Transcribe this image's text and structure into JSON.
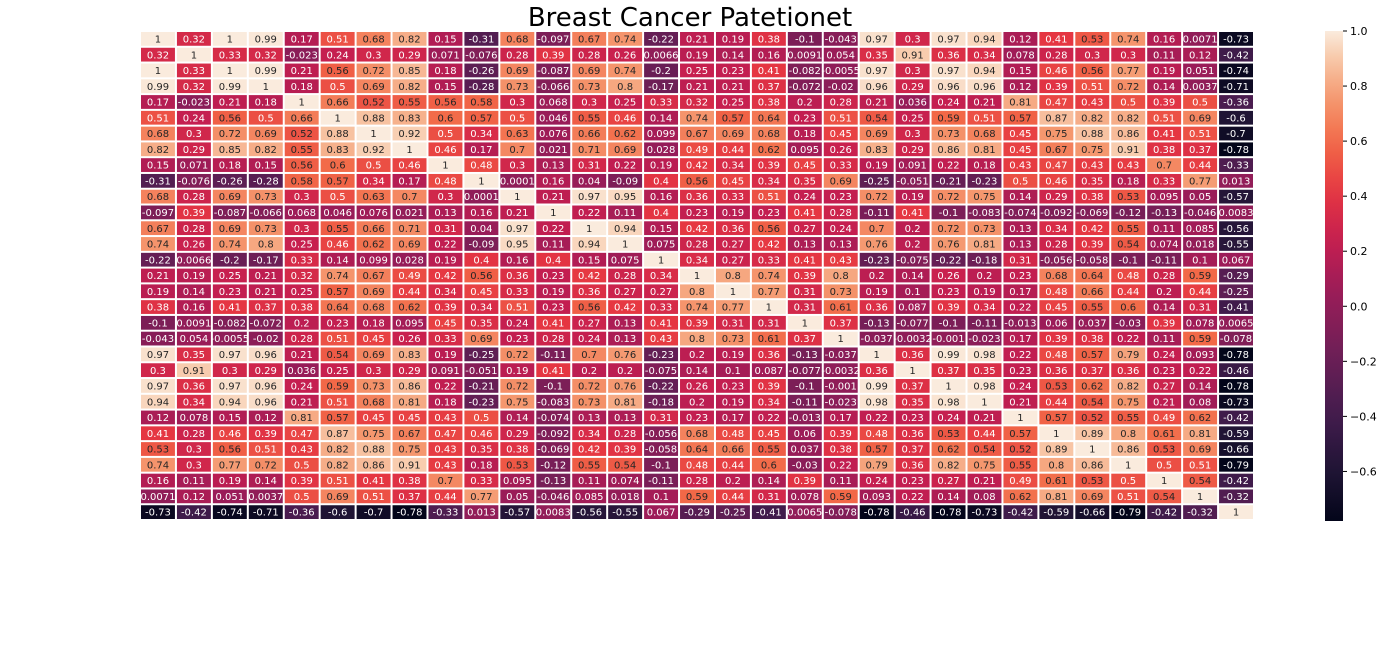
{
  "chart_data": {
    "type": "heatmap",
    "title": "Breast Cancer Patetionet",
    "colormap": "rocket",
    "vmin": -0.78,
    "vmax": 1.0,
    "colorbar_ticks": [
      "1.0",
      "0.8",
      "0.6",
      "0.4",
      "0.2",
      "0.0",
      "−0.2",
      "−0.4",
      "−0.6"
    ],
    "colorbar_tick_values": [
      1.0,
      0.8,
      0.6,
      0.4,
      0.2,
      0.0,
      -0.2,
      -0.4,
      -0.6
    ],
    "x_tick_labels": [],
    "y_tick_labels": [],
    "grid": "white lines between cells",
    "labels": [
      [
        "1",
        "0.32",
        "1",
        "0.99",
        "0.17",
        "0.51",
        "0.68",
        "0.82",
        "0.15",
        "-0.31",
        "0.68",
        "-0.097",
        "0.67",
        "0.74",
        "-0.22",
        "0.21",
        "0.19",
        "0.38",
        "-0.1",
        "-0.043",
        "0.97",
        "0.3",
        "0.97",
        "0.94",
        "0.12",
        "0.41",
        "0.53",
        "0.74",
        "0.16",
        "0.0071",
        "-0.73"
      ],
      [
        "0.32",
        "1",
        "0.33",
        "0.32",
        "-0.023",
        "0.24",
        "0.3",
        "0.29",
        "0.071",
        "-0.076",
        "0.28",
        "0.39",
        "0.28",
        "0.26",
        "0.0066",
        "0.19",
        "0.14",
        "0.16",
        "0.0091",
        "0.054",
        "0.35",
        "0.91",
        "0.36",
        "0.34",
        "0.078",
        "0.28",
        "0.3",
        "0.3",
        "0.11",
        "0.12",
        "-0.42"
      ],
      [
        "1",
        "0.33",
        "1",
        "0.99",
        "0.21",
        "0.56",
        "0.72",
        "0.85",
        "0.18",
        "-0.26",
        "0.69",
        "-0.087",
        "0.69",
        "0.74",
        "-0.2",
        "0.25",
        "0.23",
        "0.41",
        "-0.082",
        "-0.0055",
        "0.97",
        "0.3",
        "0.97",
        "0.94",
        "0.15",
        "0.46",
        "0.56",
        "0.77",
        "0.19",
        "0.051",
        "-0.74"
      ],
      [
        "0.99",
        "0.32",
        "0.99",
        "1",
        "0.18",
        "0.5",
        "0.69",
        "0.82",
        "0.15",
        "-0.28",
        "0.73",
        "-0.066",
        "0.73",
        "0.8",
        "-0.17",
        "0.21",
        "0.21",
        "0.37",
        "-0.072",
        "-0.02",
        "0.96",
        "0.29",
        "0.96",
        "0.96",
        "0.12",
        "0.39",
        "0.51",
        "0.72",
        "0.14",
        "0.0037",
        "-0.71"
      ],
      [
        "0.17",
        "-0.023",
        "0.21",
        "0.18",
        "1",
        "0.66",
        "0.52",
        "0.55",
        "0.56",
        "0.58",
        "0.3",
        "0.068",
        "0.3",
        "0.25",
        "0.33",
        "0.32",
        "0.25",
        "0.38",
        "0.2",
        "0.28",
        "0.21",
        "0.036",
        "0.24",
        "0.21",
        "0.81",
        "0.47",
        "0.43",
        "0.5",
        "0.39",
        "0.5",
        "-0.36"
      ],
      [
        "0.51",
        "0.24",
        "0.56",
        "0.5",
        "0.66",
        "1",
        "0.88",
        "0.83",
        "0.6",
        "0.57",
        "0.5",
        "0.046",
        "0.55",
        "0.46",
        "0.14",
        "0.74",
        "0.57",
        "0.64",
        "0.23",
        "0.51",
        "0.54",
        "0.25",
        "0.59",
        "0.51",
        "0.57",
        "0.87",
        "0.82",
        "0.82",
        "0.51",
        "0.69",
        "-0.6"
      ],
      [
        "0.68",
        "0.3",
        "0.72",
        "0.69",
        "0.52",
        "0.88",
        "1",
        "0.92",
        "0.5",
        "0.34",
        "0.63",
        "0.076",
        "0.66",
        "0.62",
        "0.099",
        "0.67",
        "0.69",
        "0.68",
        "0.18",
        "0.45",
        "0.69",
        "0.3",
        "0.73",
        "0.68",
        "0.45",
        "0.75",
        "0.88",
        "0.86",
        "0.41",
        "0.51",
        "-0.7"
      ],
      [
        "0.82",
        "0.29",
        "0.85",
        "0.82",
        "0.55",
        "0.83",
        "0.92",
        "1",
        "0.46",
        "0.17",
        "0.7",
        "0.021",
        "0.71",
        "0.69",
        "0.028",
        "0.49",
        "0.44",
        "0.62",
        "0.095",
        "0.26",
        "0.83",
        "0.29",
        "0.86",
        "0.81",
        "0.45",
        "0.67",
        "0.75",
        "0.91",
        "0.38",
        "0.37",
        "-0.78"
      ],
      [
        "0.15",
        "0.071",
        "0.18",
        "0.15",
        "0.56",
        "0.6",
        "0.5",
        "0.46",
        "1",
        "0.48",
        "0.3",
        "0.13",
        "0.31",
        "0.22",
        "0.19",
        "0.42",
        "0.34",
        "0.39",
        "0.45",
        "0.33",
        "0.19",
        "0.091",
        "0.22",
        "0.18",
        "0.43",
        "0.47",
        "0.43",
        "0.43",
        "0.7",
        "0.44",
        "-0.33"
      ],
      [
        "-0.31",
        "-0.076",
        "-0.26",
        "-0.28",
        "0.58",
        "0.57",
        "0.34",
        "0.17",
        "0.48",
        "1",
        "0.0001",
        "0.16",
        "0.04",
        "-0.09",
        "0.4",
        "0.56",
        "0.45",
        "0.34",
        "0.35",
        "0.69",
        "-0.25",
        "-0.051",
        "-0.21",
        "-0.23",
        "0.5",
        "0.46",
        "0.35",
        "0.18",
        "0.33",
        "0.77",
        "0.013"
      ],
      [
        "0.68",
        "0.28",
        "0.69",
        "0.73",
        "0.3",
        "0.5",
        "0.63",
        "0.7",
        "0.3",
        "0.0001",
        "1",
        "0.21",
        "0.97",
        "0.95",
        "0.16",
        "0.36",
        "0.33",
        "0.51",
        "0.24",
        "0.23",
        "0.72",
        "0.19",
        "0.72",
        "0.75",
        "0.14",
        "0.29",
        "0.38",
        "0.53",
        "0.095",
        "0.05",
        "-0.57"
      ],
      [
        "-0.097",
        "0.39",
        "-0.087",
        "-0.066",
        "0.068",
        "0.046",
        "0.076",
        "0.021",
        "0.13",
        "0.16",
        "0.21",
        "1",
        "0.22",
        "0.11",
        "0.4",
        "0.23",
        "0.19",
        "0.23",
        "0.41",
        "0.28",
        "-0.11",
        "0.41",
        "-0.1",
        "-0.083",
        "-0.074",
        "-0.092",
        "-0.069",
        "-0.12",
        "-0.13",
        "-0.046",
        "0.0083"
      ],
      [
        "0.67",
        "0.28",
        "0.69",
        "0.73",
        "0.3",
        "0.55",
        "0.66",
        "0.71",
        "0.31",
        "0.04",
        "0.97",
        "0.22",
        "1",
        "0.94",
        "0.15",
        "0.42",
        "0.36",
        "0.56",
        "0.27",
        "0.24",
        "0.7",
        "0.2",
        "0.72",
        "0.73",
        "0.13",
        "0.34",
        "0.42",
        "0.55",
        "0.11",
        "0.085",
        "-0.56"
      ],
      [
        "0.74",
        "0.26",
        "0.74",
        "0.8",
        "0.25",
        "0.46",
        "0.62",
        "0.69",
        "0.22",
        "-0.09",
        "0.95",
        "0.11",
        "0.94",
        "1",
        "0.075",
        "0.28",
        "0.27",
        "0.42",
        "0.13",
        "0.13",
        "0.76",
        "0.2",
        "0.76",
        "0.81",
        "0.13",
        "0.28",
        "0.39",
        "0.54",
        "0.074",
        "0.018",
        "-0.55"
      ],
      [
        "-0.22",
        "0.0066",
        "-0.2",
        "-0.17",
        "0.33",
        "0.14",
        "0.099",
        "0.028",
        "0.19",
        "0.4",
        "0.16",
        "0.4",
        "0.15",
        "0.075",
        "1",
        "0.34",
        "0.27",
        "0.33",
        "0.41",
        "0.43",
        "-0.23",
        "-0.075",
        "-0.22",
        "-0.18",
        "0.31",
        "-0.056",
        "-0.058",
        "-0.1",
        "-0.11",
        "0.1",
        "0.067"
      ],
      [
        "0.21",
        "0.19",
        "0.25",
        "0.21",
        "0.32",
        "0.74",
        "0.67",
        "0.49",
        "0.42",
        "0.56",
        "0.36",
        "0.23",
        "0.42",
        "0.28",
        "0.34",
        "1",
        "0.8",
        "0.74",
        "0.39",
        "0.8",
        "0.2",
        "0.14",
        "0.26",
        "0.2",
        "0.23",
        "0.68",
        "0.64",
        "0.48",
        "0.28",
        "0.59",
        "-0.29"
      ],
      [
        "0.19",
        "0.14",
        "0.23",
        "0.21",
        "0.25",
        "0.57",
        "0.69",
        "0.44",
        "0.34",
        "0.45",
        "0.33",
        "0.19",
        "0.36",
        "0.27",
        "0.27",
        "0.8",
        "1",
        "0.77",
        "0.31",
        "0.73",
        "0.19",
        "0.1",
        "0.23",
        "0.19",
        "0.17",
        "0.48",
        "0.66",
        "0.44",
        "0.2",
        "0.44",
        "-0.25"
      ],
      [
        "0.38",
        "0.16",
        "0.41",
        "0.37",
        "0.38",
        "0.64",
        "0.68",
        "0.62",
        "0.39",
        "0.34",
        "0.51",
        "0.23",
        "0.56",
        "0.42",
        "0.33",
        "0.74",
        "0.77",
        "1",
        "0.31",
        "0.61",
        "0.36",
        "0.087",
        "0.39",
        "0.34",
        "0.22",
        "0.45",
        "0.55",
        "0.6",
        "0.14",
        "0.31",
        "-0.41"
      ],
      [
        "-0.1",
        "0.0091",
        "-0.082",
        "-0.072",
        "0.2",
        "0.23",
        "0.18",
        "0.095",
        "0.45",
        "0.35",
        "0.24",
        "0.41",
        "0.27",
        "0.13",
        "0.41",
        "0.39",
        "0.31",
        "0.31",
        "1",
        "0.37",
        "-0.13",
        "-0.077",
        "-0.1",
        "-0.11",
        "-0.013",
        "0.06",
        "0.037",
        "-0.03",
        "0.39",
        "0.078",
        "0.0065"
      ],
      [
        "-0.043",
        "0.054",
        "-0.0055",
        "-0.02",
        "0.28",
        "0.51",
        "0.45",
        "0.26",
        "0.33",
        "0.69",
        "0.23",
        "0.28",
        "0.24",
        "0.13",
        "0.43",
        "0.8",
        "0.73",
        "0.61",
        "0.37",
        "1",
        "-0.037",
        "-0.0032",
        "-0.001",
        "-0.023",
        "0.17",
        "0.39",
        "0.38",
        "0.22",
        "0.11",
        "0.59",
        "-0.078"
      ],
      [
        "0.97",
        "0.35",
        "0.97",
        "0.96",
        "0.21",
        "0.54",
        "0.69",
        "0.83",
        "0.19",
        "-0.25",
        "0.72",
        "-0.11",
        "0.7",
        "0.76",
        "-0.23",
        "0.2",
        "0.19",
        "0.36",
        "-0.13",
        "-0.037",
        "1",
        "0.36",
        "0.99",
        "0.98",
        "0.22",
        "0.48",
        "0.57",
        "0.79",
        "0.24",
        "0.093",
        "-0.78"
      ],
      [
        "0.3",
        "0.91",
        "0.3",
        "0.29",
        "0.036",
        "0.25",
        "0.3",
        "0.29",
        "0.091",
        "-0.051",
        "0.19",
        "0.41",
        "0.2",
        "0.2",
        "-0.075",
        "0.14",
        "0.1",
        "0.087",
        "-0.077",
        "-0.0032",
        "0.36",
        "1",
        "0.37",
        "0.35",
        "0.23",
        "0.36",
        "0.37",
        "0.36",
        "0.23",
        "0.22",
        "-0.46"
      ],
      [
        "0.97",
        "0.36",
        "0.97",
        "0.96",
        "0.24",
        "0.59",
        "0.73",
        "0.86",
        "0.22",
        "-0.21",
        "0.72",
        "-0.1",
        "0.72",
        "0.76",
        "-0.22",
        "0.26",
        "0.23",
        "0.39",
        "-0.1",
        "-0.001",
        "0.99",
        "0.37",
        "1",
        "0.98",
        "0.24",
        "0.53",
        "0.62",
        "0.82",
        "0.27",
        "0.14",
        "-0.78"
      ],
      [
        "0.94",
        "0.34",
        "0.94",
        "0.96",
        "0.21",
        "0.51",
        "0.68",
        "0.81",
        "0.18",
        "-0.23",
        "0.75",
        "-0.083",
        "0.73",
        "0.81",
        "-0.18",
        "0.2",
        "0.19",
        "0.34",
        "-0.11",
        "-0.023",
        "0.98",
        "0.35",
        "0.98",
        "1",
        "0.21",
        "0.44",
        "0.54",
        "0.75",
        "0.21",
        "0.08",
        "-0.73"
      ],
      [
        "0.12",
        "0.078",
        "0.15",
        "0.12",
        "0.81",
        "0.57",
        "0.45",
        "0.45",
        "0.43",
        "0.5",
        "0.14",
        "-0.074",
        "0.13",
        "0.13",
        "0.31",
        "0.23",
        "0.17",
        "0.22",
        "-0.013",
        "0.17",
        "0.22",
        "0.23",
        "0.24",
        "0.21",
        "1",
        "0.57",
        "0.52",
        "0.55",
        "0.49",
        "0.62",
        "-0.42"
      ],
      [
        "0.41",
        "0.28",
        "0.46",
        "0.39",
        "0.47",
        "0.87",
        "0.75",
        "0.67",
        "0.47",
        "0.46",
        "0.29",
        "-0.092",
        "0.34",
        "0.28",
        "-0.056",
        "0.68",
        "0.48",
        "0.45",
        "0.06",
        "0.39",
        "0.48",
        "0.36",
        "0.53",
        "0.44",
        "0.57",
        "1",
        "0.89",
        "0.8",
        "0.61",
        "0.81",
        "-0.59"
      ],
      [
        "0.53",
        "0.3",
        "0.56",
        "0.51",
        "0.43",
        "0.82",
        "0.88",
        "0.75",
        "0.43",
        "0.35",
        "0.38",
        "-0.069",
        "0.42",
        "0.39",
        "-0.058",
        "0.64",
        "0.66",
        "0.55",
        "0.037",
        "0.38",
        "0.57",
        "0.37",
        "0.62",
        "0.54",
        "0.52",
        "0.89",
        "1",
        "0.86",
        "0.53",
        "0.69",
        "-0.66"
      ],
      [
        "0.74",
        "0.3",
        "0.77",
        "0.72",
        "0.5",
        "0.82",
        "0.86",
        "0.91",
        "0.43",
        "0.18",
        "0.53",
        "-0.12",
        "0.55",
        "0.54",
        "-0.1",
        "0.48",
        "0.44",
        "0.6",
        "-0.03",
        "0.22",
        "0.79",
        "0.36",
        "0.82",
        "0.75",
        "0.55",
        "0.8",
        "0.86",
        "1",
        "0.5",
        "0.51",
        "-0.79"
      ],
      [
        "0.16",
        "0.11",
        "0.19",
        "0.14",
        "0.39",
        "0.51",
        "0.41",
        "0.38",
        "0.7",
        "0.33",
        "0.095",
        "-0.13",
        "0.11",
        "0.074",
        "-0.11",
        "0.28",
        "0.2",
        "0.14",
        "0.39",
        "0.11",
        "0.24",
        "0.23",
        "0.27",
        "0.21",
        "0.49",
        "0.61",
        "0.53",
        "0.5",
        "1",
        "0.54",
        "-0.42"
      ],
      [
        "0.0071",
        "0.12",
        "0.051",
        "0.0037",
        "0.5",
        "0.69",
        "0.51",
        "0.37",
        "0.44",
        "0.77",
        "0.05",
        "-0.046",
        "0.085",
        "0.018",
        "0.1",
        "0.59",
        "0.44",
        "0.31",
        "0.078",
        "0.59",
        "0.093",
        "0.22",
        "0.14",
        "0.08",
        "0.62",
        "0.81",
        "0.69",
        "0.51",
        "0.54",
        "1",
        "-0.32"
      ],
      [
        "-0.73",
        "-0.42",
        "-0.74",
        "-0.71",
        "-0.36",
        "-0.6",
        "-0.7",
        "-0.78",
        "-0.33",
        "0.013",
        "-0.57",
        "0.0083",
        "-0.56",
        "-0.55",
        "0.067",
        "-0.29",
        "-0.25",
        "-0.41",
        "0.0065",
        "-0.078",
        "-0.78",
        "-0.46",
        "-0.78",
        "-0.73",
        "-0.42",
        "-0.59",
        "-0.66",
        "-0.79",
        "-0.42",
        "-0.32",
        "1"
      ]
    ]
  }
}
